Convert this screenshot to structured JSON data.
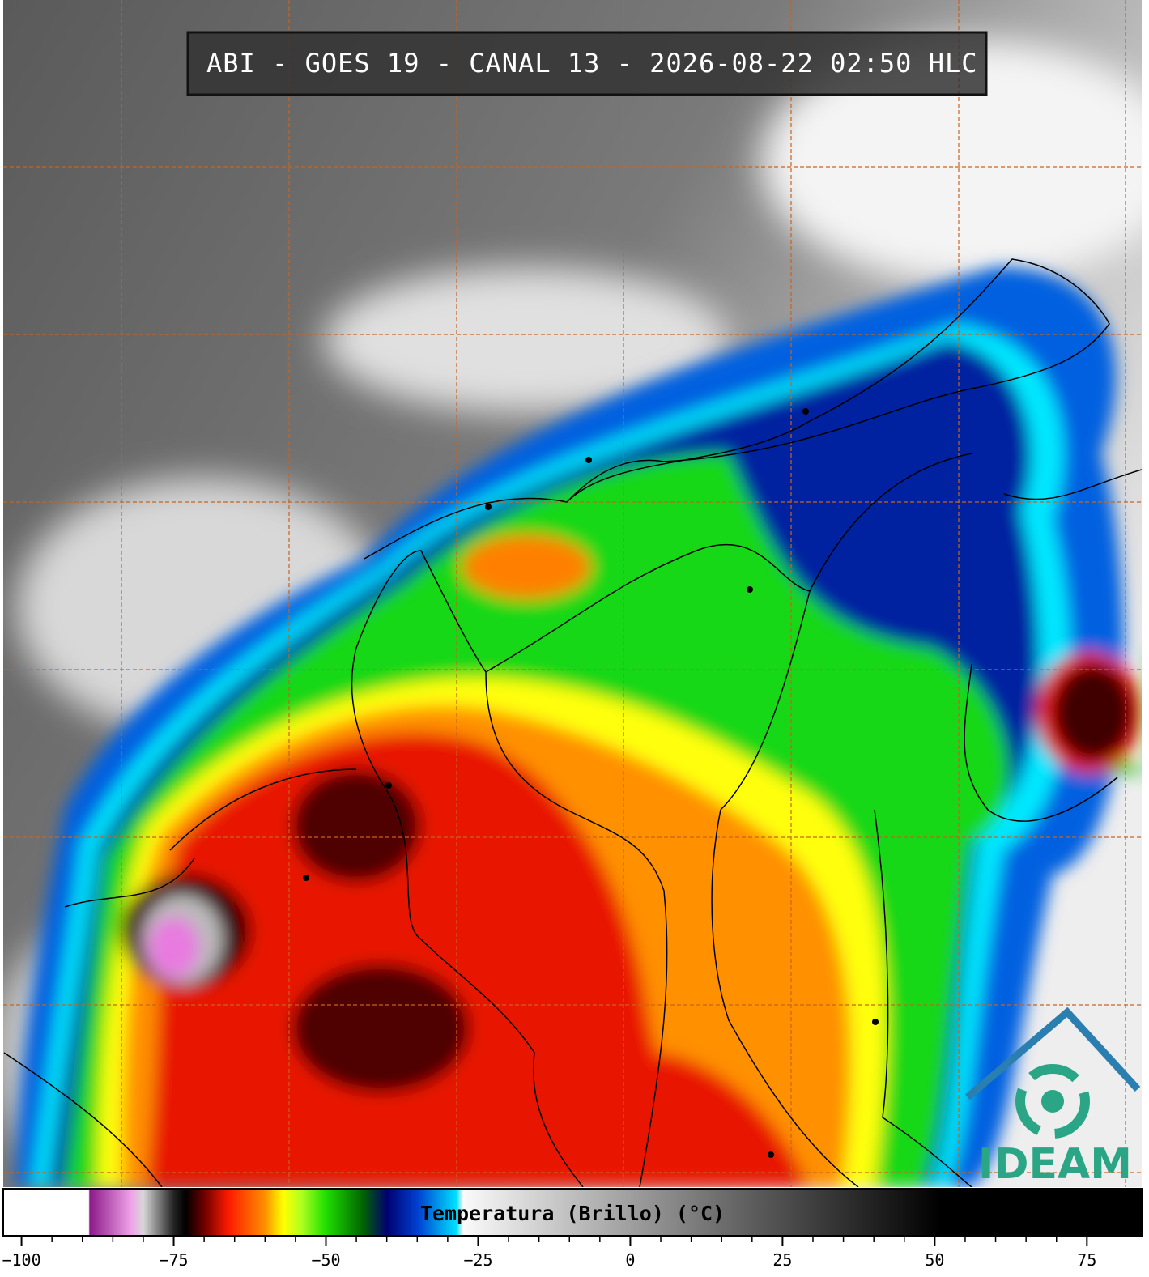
{
  "map": {
    "title": "ABI - GOES 19 - CANAL 13 - 2026-08-22 02:50 HLC",
    "logo": "IDEAM"
  },
  "colorbar": {
    "label": "Temperatura (Brillo) (°C)",
    "range": [
      -103,
      84
    ],
    "ticks": [
      {
        "value": -100,
        "label": "−100"
      },
      {
        "value": -75,
        "label": "−75"
      },
      {
        "value": -50,
        "label": "−50"
      },
      {
        "value": -25,
        "label": "−25"
      },
      0,
      25,
      50,
      75
    ]
  }
}
